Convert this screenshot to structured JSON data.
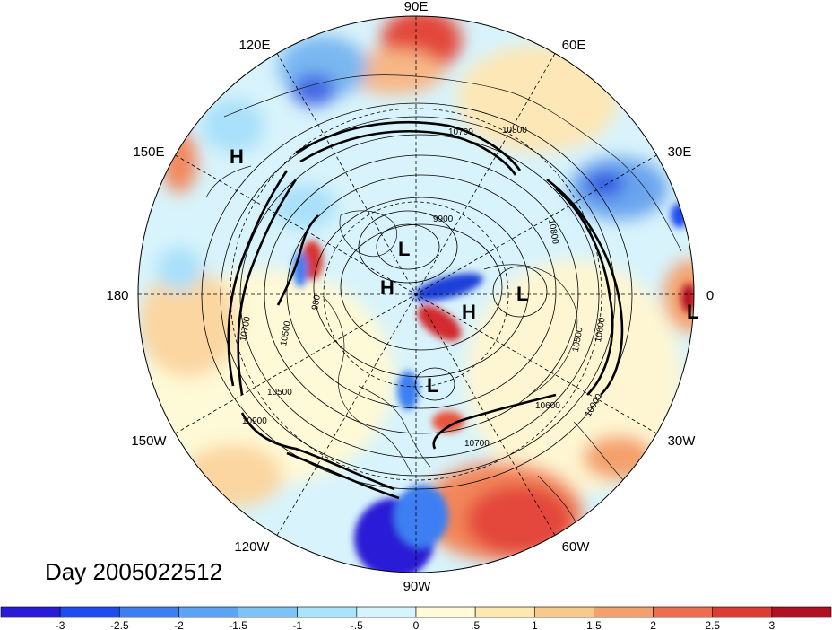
{
  "title": "Day 2005022512",
  "longitude_labels": [
    {
      "text": "90E"
    },
    {
      "text": "60E"
    },
    {
      "text": "30E"
    },
    {
      "text": "0"
    },
    {
      "text": "30W"
    },
    {
      "text": "60W"
    },
    {
      "text": "90W"
    },
    {
      "text": "120W"
    },
    {
      "text": "150W"
    },
    {
      "text": "180"
    },
    {
      "text": "150E"
    },
    {
      "text": "120E"
    }
  ],
  "pressure_systems": [
    "H",
    "L",
    "L",
    "H",
    "L",
    "H",
    "L"
  ],
  "contour_labels": [
    "10800",
    "10700",
    "9900",
    "10500",
    "10600",
    "10900",
    "10500",
    "10900",
    "10700",
    "980",
    "10800",
    "10500",
    "10600",
    "10700"
  ],
  "colorbar": {
    "colors": [
      "#2a1cd6",
      "#1f4cf0",
      "#3d7ff2",
      "#5aa3f5",
      "#7cc3f7",
      "#a8e4fa",
      "#d6f4fb",
      "#fffbd8",
      "#fde8b0",
      "#f9c98b",
      "#f4a06c",
      "#ee6d4f",
      "#e03a34",
      "#b21023"
    ],
    "ticks": [
      "-3",
      "-2.5",
      "-2",
      "-1.5",
      "-1",
      "-.5",
      "0",
      ".5",
      "1",
      "1.5",
      "2",
      "2.5",
      "3"
    ]
  }
}
